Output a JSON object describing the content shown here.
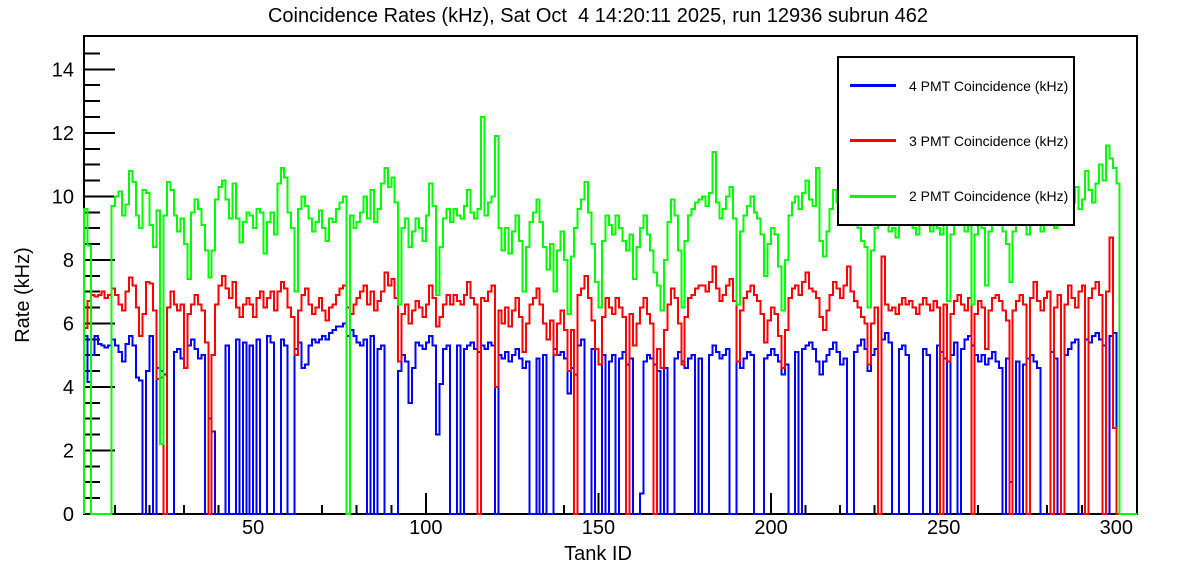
{
  "chart_data": {
    "type": "line",
    "style": "step-histogram",
    "title": "Coincidence Rates (kHz), Sat Oct  4 14:20:11 2025, run 12936 subrun 462",
    "xlabel": "Tank ID",
    "ylabel": "Rate (kHz)",
    "xlim": [
      1,
      306
    ],
    "ylim": [
      0,
      15.05
    ],
    "x_major_ticks": [
      50,
      100,
      150,
      200,
      250,
      300
    ],
    "x_minor_step": 10,
    "y_major_ticks": [
      0,
      2,
      4,
      6,
      8,
      10,
      12,
      14
    ],
    "y_minor_step": 0.5,
    "grid": false,
    "legend_position": "top-right",
    "frame_color": "#000000",
    "background_color": "#ffffff",
    "x_start": 1,
    "series": [
      {
        "name": "4 PMT Coincidence (kHz)",
        "color": "#0000ff",
        "values": [
          5.6,
          4.15,
          5.0,
          5.6,
          5.35,
          5.3,
          5.25,
          5.3,
          5.5,
          5.3,
          5.1,
          4.8,
          5.35,
          5.6,
          5.3,
          4.3,
          4.2,
          0,
          4.5,
          5.6,
          0,
          4.6,
          4.5,
          4.4,
          0,
          0,
          5.1,
          5.2,
          4.9,
          4.6,
          5.3,
          5.5,
          5.2,
          4.9,
          5.0,
          0,
          3.0,
          2.6,
          0,
          0,
          0,
          5.3,
          0,
          0,
          5.5,
          0,
          5.4,
          0,
          5.3,
          0,
          5.5,
          0,
          0,
          5.6,
          5.4,
          0,
          0,
          5.5,
          5.3,
          0,
          0,
          5.2,
          5.4,
          4.6,
          4.7,
          5.3,
          5.5,
          5.4,
          5.5,
          5.6,
          5.5,
          5.7,
          5.8,
          5.9,
          5.9,
          6.0,
          5.6,
          5.8,
          5.6,
          5.4,
          5.3,
          5.5,
          0,
          5.6,
          0,
          5.2,
          5.3,
          0,
          0,
          0,
          0,
          4.5,
          5.0,
          4.8,
          3.5,
          4.6,
          5.4,
          5.3,
          5.2,
          5.4,
          5.6,
          5.3,
          2.5,
          4.1,
          5.2,
          5.3,
          0,
          0,
          5.3,
          0,
          5.2,
          5.3,
          5.4,
          5.2,
          5.1,
          5.3,
          5.2,
          5.4,
          5.3,
          0,
          5.0,
          4.9,
          5.1,
          4.8,
          5.0,
          5.2,
          4.9,
          4.6,
          4.8,
          0,
          0,
          4.9,
          0,
          5.0,
          0,
          0,
          5.2,
          5.0,
          5.1,
          4.9,
          3.8,
          4.6,
          4.4,
          5.3,
          5.5,
          0,
          0,
          5.2,
          0,
          0,
          5.0,
          0,
          4.8,
          5.0,
          0,
          4.9,
          5.1,
          4.7,
          4.9,
          0,
          0,
          0.65,
          4.8,
          5.0,
          4.9,
          4.7,
          4.5,
          0,
          4.6,
          0,
          0,
          4.9,
          5.1,
          4.8,
          4.6,
          4.9,
          5.0,
          0,
          4.9,
          0,
          0,
          5.0,
          5.3,
          5.1,
          4.9,
          5.0,
          5.2,
          0,
          0,
          4.8,
          4.6,
          4.9,
          5.1,
          5.0,
          0,
          0,
          0,
          4.9,
          5.0,
          5.2,
          5.0,
          4.8,
          4.4,
          4.7,
          0,
          0,
          5.1,
          0,
          5.2,
          5.3,
          5.4,
          5.2,
          4.8,
          4.4,
          4.8,
          5.0,
          5.2,
          5.4,
          5.1,
          4.7,
          4.9,
          0,
          0,
          5.1,
          5.3,
          5.5,
          5.2,
          4.5,
          5.0,
          5.2,
          0,
          5.5,
          5.7,
          5.4,
          0,
          0,
          5.2,
          5.3,
          5.0,
          0,
          0,
          0,
          0,
          5.2,
          5.0,
          0,
          0,
          5.3,
          5.1,
          4.9,
          0,
          5.0,
          5.4,
          0,
          5.2,
          5.5,
          5.6,
          5.3,
          5.0,
          4.8,
          5.0,
          4.7,
          4.9,
          5.1,
          4.8,
          4.6,
          0,
          4.9,
          1.0,
          0,
          4.8,
          0,
          4.7,
          4.9,
          5.0,
          4.8,
          4.6,
          0,
          0,
          0,
          5.1,
          4.9,
          0,
          0,
          5.0,
          5.2,
          5.4,
          5.5,
          0,
          0,
          5.5,
          5.4,
          5.6,
          5.7,
          5.5,
          5.3,
          0,
          5.6,
          5.7,
          0,
          0,
          0,
          0,
          0,
          0
        ]
      },
      {
        "name": "3 PMT Coincidence (kHz)",
        "color": "#ff0000",
        "values": [
          5.85,
          6.7,
          6.9,
          6.85,
          6.9,
          7.0,
          6.8,
          6.9,
          7.1,
          6.9,
          6.6,
          6.4,
          7.0,
          7.45,
          7.2,
          6.5,
          5.6,
          6.3,
          7.3,
          7.25,
          6.4,
          4.25,
          4.3,
          0,
          6.5,
          7.0,
          6.6,
          6.4,
          6.6,
          4.6,
          6.3,
          6.6,
          6.9,
          6.6,
          6.4,
          5.4,
          0,
          5.0,
          6.6,
          7.2,
          7.5,
          7.1,
          6.8,
          7.3,
          6.5,
          6.2,
          6.6,
          6.8,
          6.6,
          6.2,
          6.8,
          7.0,
          6.5,
          6.8,
          7.0,
          6.4,
          7.0,
          7.3,
          7.1,
          6.5,
          6.2,
          5.0,
          6.4,
          6.9,
          7.1,
          6.6,
          6.3,
          6.5,
          6.8,
          6.4,
          6.1,
          6.5,
          6.6,
          6.9,
          7.1,
          7.2,
          6.5,
          6.3,
          6.6,
          6.8,
          7.0,
          7.2,
          6.6,
          7.0,
          6.4,
          6.7,
          7.0,
          7.6,
          7.2,
          7.4,
          6.8,
          4.8,
          6.3,
          6.6,
          6.0,
          6.4,
          6.7,
          6.5,
          6.2,
          6.6,
          7.2,
          6.8,
          5.9,
          6.2,
          6.6,
          6.9,
          6.6,
          6.9,
          6.7,
          6.6,
          6.9,
          7.3,
          6.8,
          6.6,
          0,
          6.8,
          6.7,
          7.0,
          7.2,
          4.0,
          6.4,
          6.0,
          6.5,
          5.9,
          6.4,
          6.8,
          6.2,
          5.1,
          6.0,
          6.6,
          6.8,
          7.1,
          6.6,
          6.0,
          5.5,
          6.1,
          5.0,
          6.0,
          6.4,
          5.8,
          4.5,
          5.8,
          0,
          6.9,
          7.1,
          7.5,
          6.8,
          6.1,
          5.2,
          4.7,
          6.2,
          6.8,
          6.5,
          6.3,
          6.8,
          6.5,
          6.2,
          0,
          6.3,
          5.3,
          6.0,
          6.5,
          6.8,
          6.3,
          6.0,
          0,
          5.2,
          4.6,
          5.8,
          6.6,
          7.1,
          6.8,
          6.0,
          4.7,
          6.2,
          6.8,
          6.9,
          7.1,
          7.2,
          7.2,
          7.0,
          7.3,
          7.8,
          7.1,
          6.7,
          6.9,
          7.2,
          7.4,
          6.7,
          4.8,
          6.4,
          6.8,
          7.0,
          7.2,
          6.9,
          6.7,
          6.3,
          5.4,
          6.1,
          6.5,
          6.3,
          5.6,
          4.6,
          5.8,
          6.8,
          7.1,
          7.2,
          6.9,
          7.3,
          7.6,
          7.1,
          7.0,
          6.8,
          6.2,
          5.8,
          6.4,
          6.9,
          7.3,
          7.1,
          6.8,
          7.2,
          7.8,
          7.0,
          6.7,
          6.5,
          6.2,
          6.0,
          4.7,
          6.0,
          6.5,
          0,
          8.1,
          6.6,
          6.4,
          6.5,
          6.3,
          6.6,
          6.8,
          6.6,
          6.7,
          6.5,
          6.3,
          6.6,
          6.8,
          6.6,
          6.4,
          6.7,
          6.5,
          0,
          6.6,
          4.8,
          6.3,
          6.7,
          6.9,
          6.6,
          6.4,
          6.8,
          0,
          6.3,
          6.7,
          6.5,
          5.2,
          6.4,
          6.8,
          6.9,
          6.7,
          6.4,
          6.1,
          0,
          6.4,
          6.7,
          6.9,
          6.6,
          0,
          6.8,
          7.3,
          6.7,
          6.4,
          6.8,
          7.0,
          0,
          6.5,
          6.9,
          0,
          6.6,
          7.2,
          6.8,
          6.5,
          7.0,
          7.2,
          0,
          6.8,
          7.1,
          7.3,
          6.9,
          0,
          7.0,
          8.7,
          2.7,
          0,
          0,
          0,
          0,
          0,
          0
        ]
      },
      {
        "name": "2 PMT Coincidence (kHz)",
        "color": "#00ff00",
        "values": [
          9.6,
          8.45,
          0,
          0,
          0,
          0,
          0,
          0,
          9.7,
          10.0,
          10.15,
          9.4,
          9.75,
          10.8,
          10.45,
          9.4,
          9.0,
          10.2,
          10.1,
          9.1,
          8.4,
          9.55,
          2.2,
          9.4,
          10.45,
          10.2,
          9.4,
          8.9,
          9.3,
          8.5,
          7.4,
          9.5,
          9.9,
          9.6,
          9.1,
          8.3,
          7.45,
          8.3,
          9.9,
          10.3,
          10.5,
          9.9,
          9.3,
          10.4,
          9.3,
          8.55,
          9.2,
          9.5,
          9.4,
          9.0,
          9.6,
          9.5,
          8.2,
          9.2,
          9.5,
          8.8,
          10.4,
          10.9,
          10.6,
          9.5,
          9.0,
          7.0,
          9.6,
          10.0,
          9.7,
          9.3,
          8.9,
          9.2,
          9.55,
          9.0,
          8.6,
          9.3,
          9.2,
          9.6,
          9.8,
          10.0,
          0,
          9.4,
          9.0,
          9.2,
          9.5,
          10.0,
          9.3,
          10.2,
          9.2,
          9.6,
          10.4,
          10.9,
          10.3,
          10.6,
          9.8,
          6.6,
          9.0,
          9.3,
          8.4,
          8.9,
          9.3,
          9.0,
          8.6,
          9.4,
          10.4,
          9.7,
          6.9,
          8.4,
          9.3,
          9.6,
          9.2,
          9.6,
          9.4,
          9.3,
          9.7,
          10.2,
          9.5,
          9.3,
          9.6,
          12.5,
          9.4,
          9.8,
          10.0,
          11.9,
          9.0,
          8.3,
          9.0,
          8.2,
          8.9,
          9.4,
          8.6,
          7.0,
          8.4,
          9.2,
          9.5,
          9.9,
          9.2,
          8.4,
          7.7,
          8.5,
          7.0,
          8.3,
          8.9,
          8.0,
          6.3,
          8.1,
          9.0,
          9.6,
          9.9,
          10.45,
          9.5,
          8.5,
          7.3,
          6.5,
          8.6,
          9.4,
          9.1,
          8.8,
          9.4,
          9.0,
          8.6,
          8.3,
          8.8,
          7.4,
          8.4,
          9.0,
          9.4,
          8.8,
          8.3,
          7.6,
          7.2,
          6.4,
          8.0,
          9.2,
          9.9,
          9.4,
          8.3,
          6.5,
          8.6,
          9.4,
          9.6,
          9.8,
          9.9,
          10.0,
          9.7,
          10.1,
          11.4,
          9.8,
          9.3,
          9.6,
          10.0,
          10.3,
          9.3,
          6.6,
          8.9,
          9.4,
          9.7,
          10.0,
          9.5,
          9.3,
          8.8,
          7.5,
          8.5,
          9.0,
          8.8,
          7.8,
          6.4,
          8.0,
          9.4,
          9.8,
          10.0,
          9.6,
          10.1,
          10.5,
          9.9,
          9.7,
          10.9,
          8.6,
          8.1,
          8.9,
          9.6,
          10.2,
          9.8,
          9.4,
          10.0,
          10.0,
          9.8,
          9.3,
          9.0,
          8.6,
          8.4,
          6.5,
          8.3,
          9.0,
          9.3,
          9.5,
          9.2,
          8.9,
          9.0,
          8.7,
          9.2,
          9.5,
          9.1,
          9.3,
          9.0,
          8.8,
          9.2,
          9.4,
          9.1,
          8.9,
          9.3,
          9.0,
          8.8,
          9.2,
          6.7,
          8.8,
          9.3,
          9.6,
          9.2,
          8.9,
          9.4,
          6.6,
          8.8,
          9.3,
          9.0,
          7.2,
          8.9,
          9.4,
          9.6,
          9.3,
          8.9,
          8.5,
          7.3,
          8.9,
          9.3,
          9.6,
          9.2,
          8.8,
          9.4,
          9.7,
          9.3,
          8.9,
          9.5,
          9.8,
          9.4,
          9.0,
          9.6,
          10.0,
          9.5,
          9.2,
          9.8,
          10.3,
          9.6,
          9.9,
          10.8,
          10.2,
          9.8,
          10.4,
          11.0,
          10.5,
          11.6,
          11.2,
          10.9,
          10.4,
          0,
          0,
          0,
          0,
          0
        ]
      }
    ]
  }
}
